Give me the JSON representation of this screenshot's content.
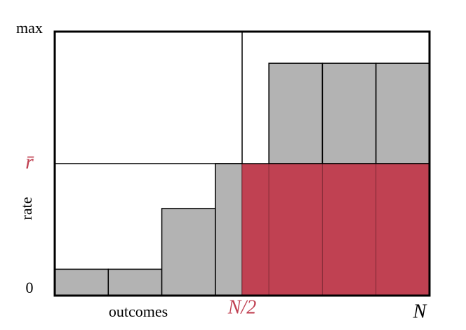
{
  "chart_data": {
    "type": "histogram",
    "x_label": "outcomes",
    "y_label": "rate",
    "bins": [
      0,
      1,
      2,
      3,
      3.5,
      4,
      5,
      6,
      7
    ],
    "values": [
      0.1,
      0.1,
      0.33,
      0.5,
      0.5,
      0.88,
      0.88,
      0.88
    ],
    "color": "#b3b3b3",
    "highlight_color": "#c04152",
    "xlim": [
      0,
      7
    ],
    "xticks": [
      {
        "value": 3.5,
        "label": "N/2"
      },
      {
        "value": 7,
        "label": "N"
      }
    ],
    "ylim": [
      0,
      1
    ],
    "yticks": [
      0,
      {
        "value": 0.5,
        "label": "r̄"
      },
      {
        "value": 1,
        "label": "max"
      }
    ]
  }
}
